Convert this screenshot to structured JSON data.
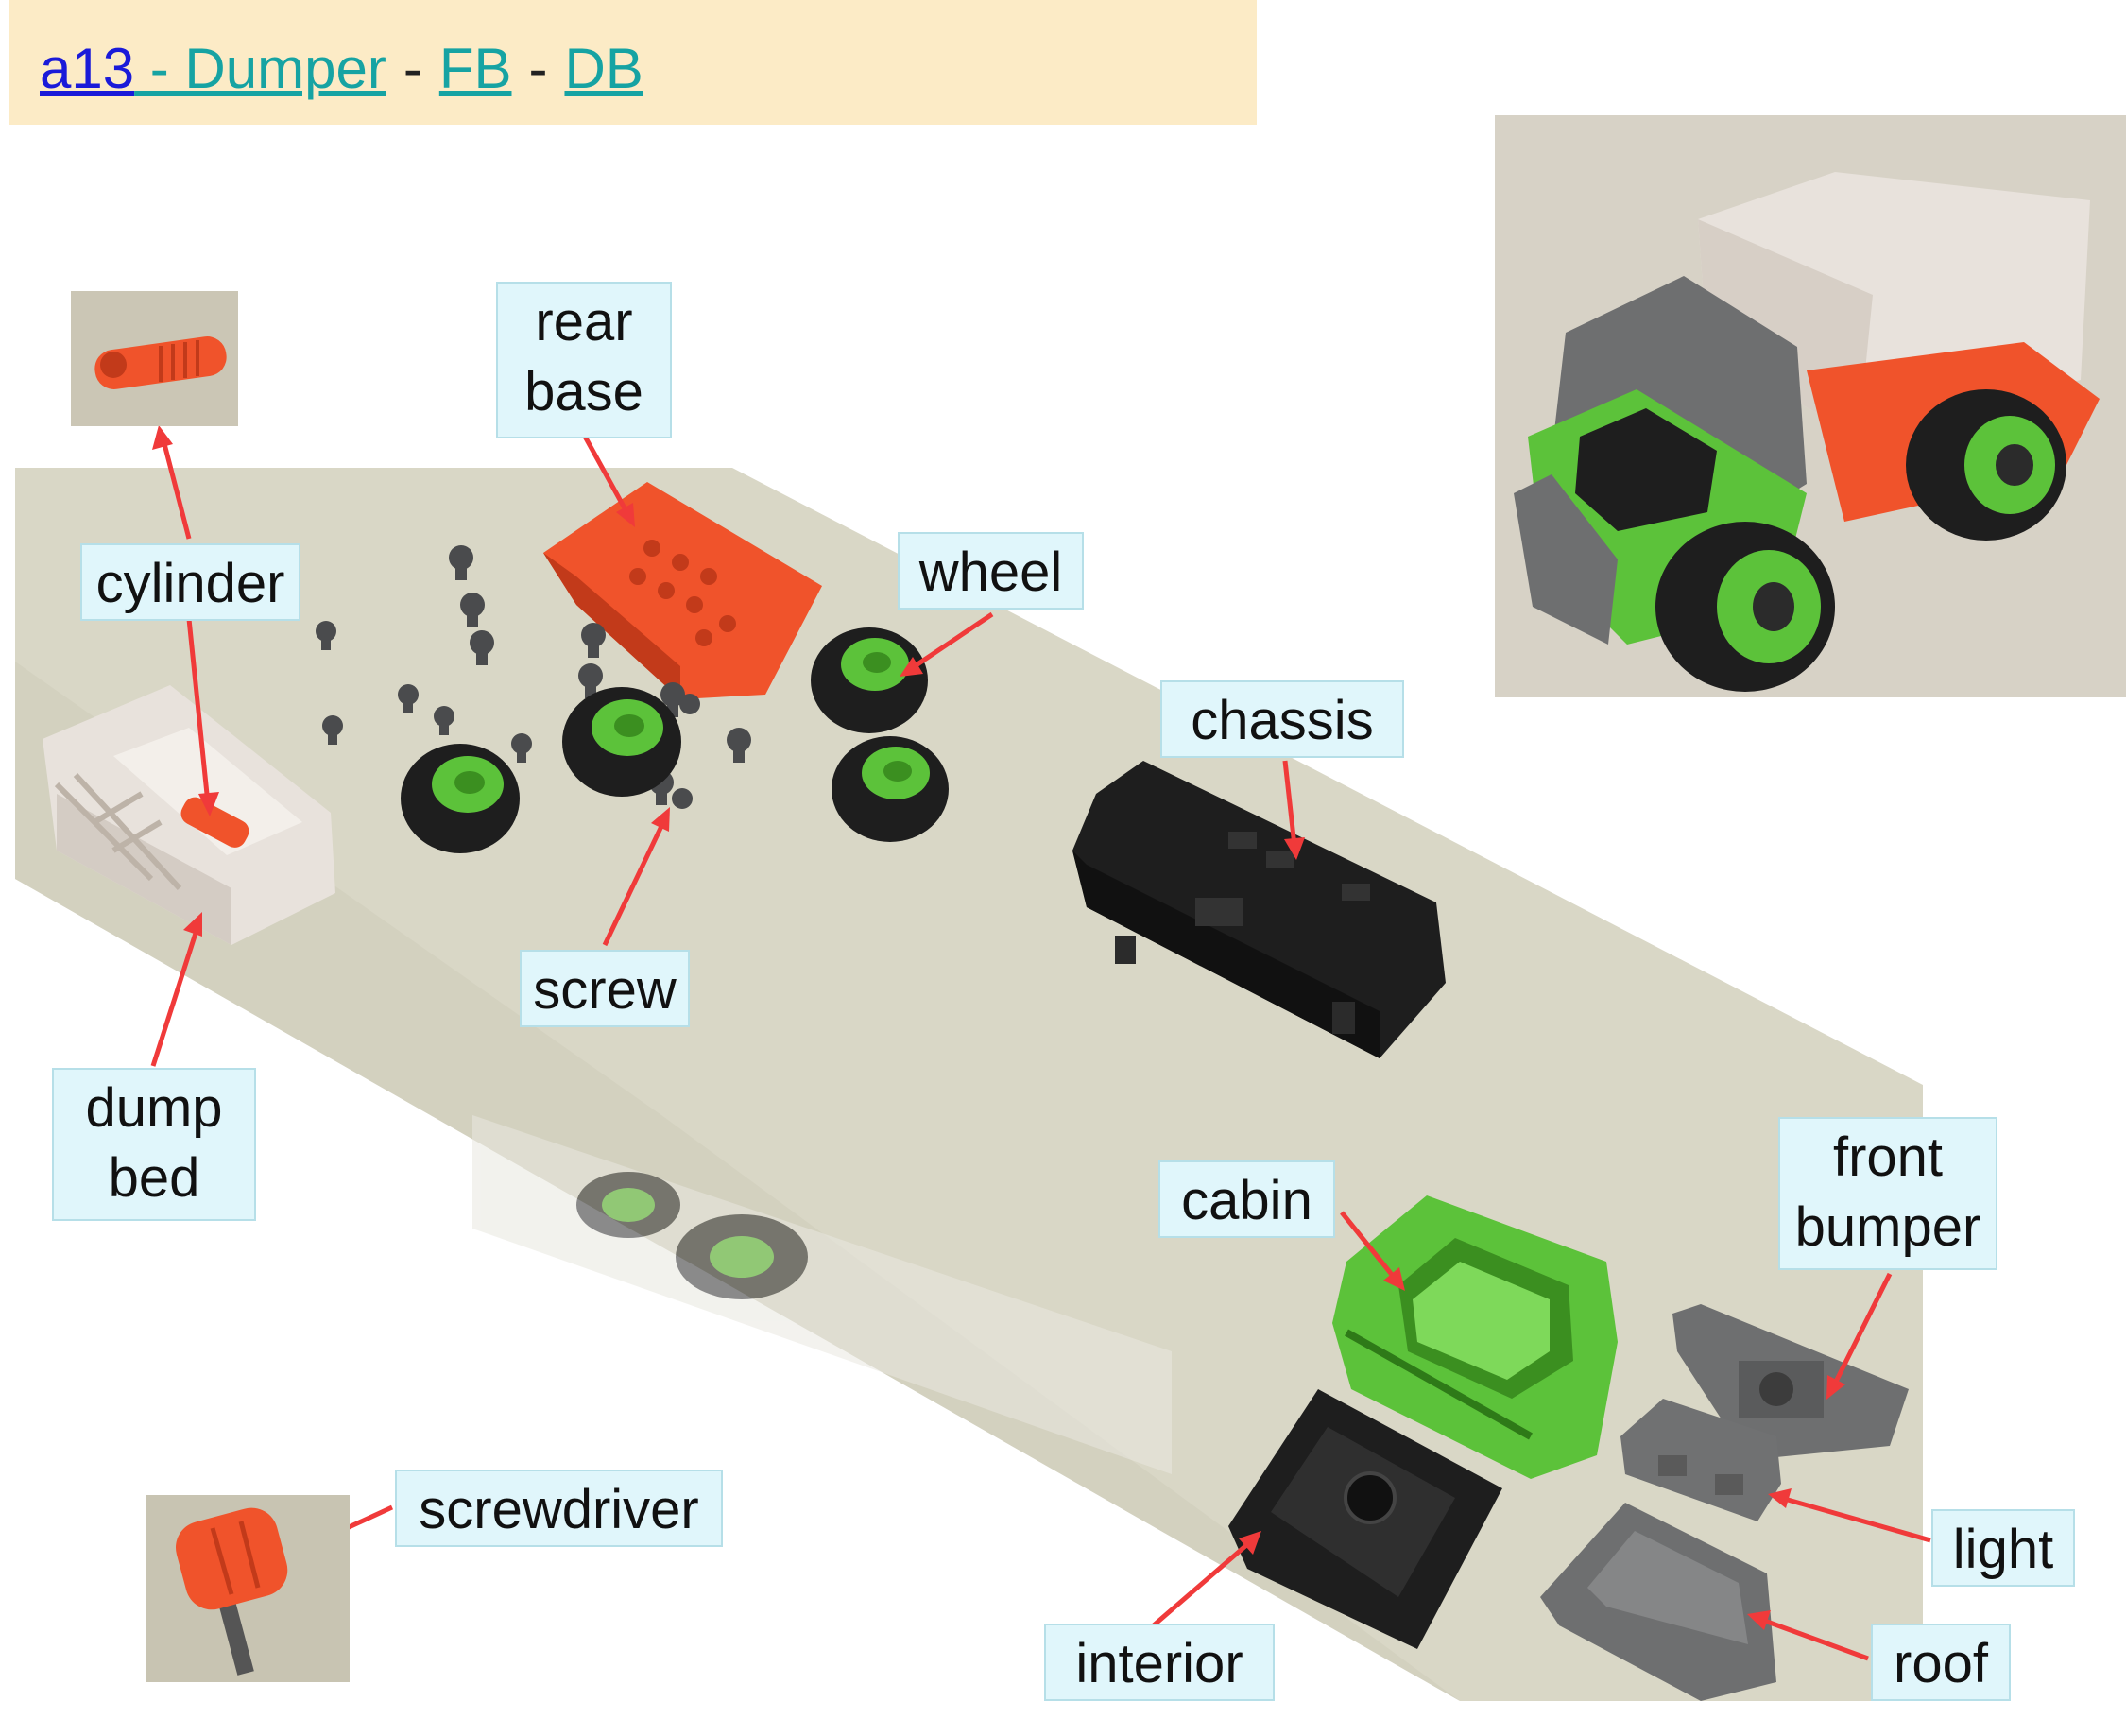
{
  "header": {
    "item_id": "a13",
    "title": " - Dumper",
    "link_fb": "FB",
    "link_db": "DB",
    "separator": "-"
  },
  "labels": {
    "cylinder": "cylinder",
    "rear_base_line1": "rear",
    "rear_base_line2": "base",
    "wheel": "wheel",
    "chassis": "chassis",
    "screw": "screw",
    "dump_bed_line1": "dump",
    "dump_bed_line2": "bed",
    "cabin": "cabin",
    "front_bumper_line1": "front",
    "front_bumper_line2": "bumper",
    "light": "light",
    "roof": "roof",
    "interior": "interior",
    "screwdriver": "screwdriver"
  },
  "colors": {
    "header_bg": "#fcebc6",
    "label_bg": "#e0f6fb",
    "arrow": "#f03a3a",
    "part_orange": "#f0532b",
    "part_green": "#5cc23a",
    "part_black": "#1e1e1e",
    "part_gray": "#6e6f70",
    "part_white": "#e8e2dc",
    "table": "#d9d7c6"
  }
}
